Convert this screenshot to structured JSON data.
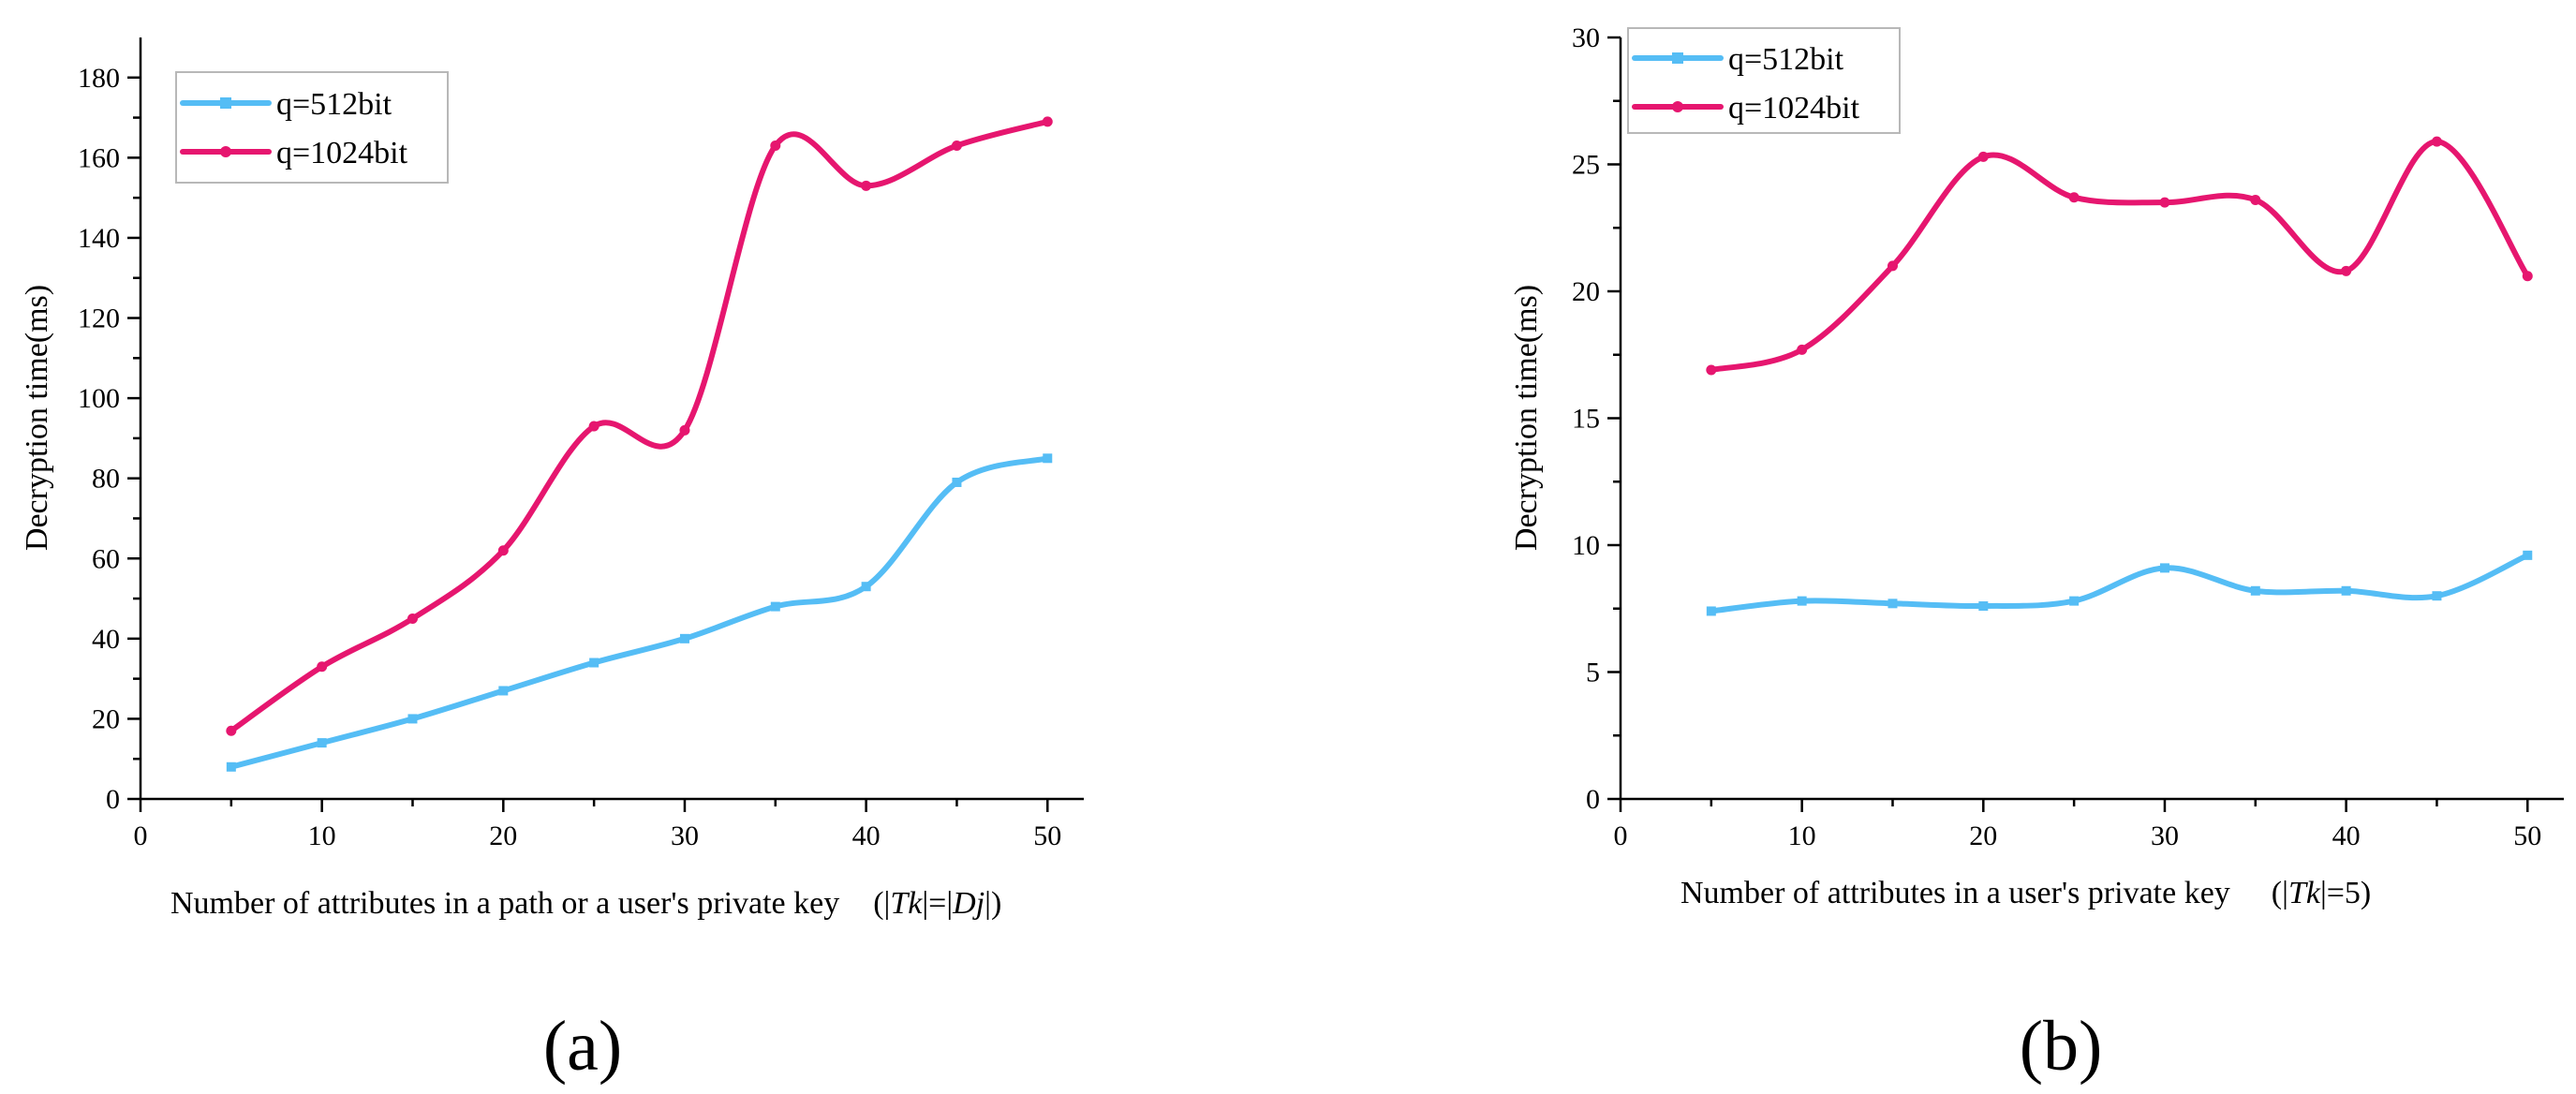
{
  "chart_data": [
    {
      "type": "line",
      "panel_label": "(a)",
      "x": [
        5,
        10,
        15,
        20,
        25,
        30,
        35,
        40,
        45,
        50
      ],
      "series": [
        {
          "name": "q=512bit",
          "color": "#55bdf5",
          "marker": "square",
          "values": [
            8,
            14,
            20,
            27,
            34,
            40,
            48,
            53,
            79,
            85
          ]
        },
        {
          "name": "q=1024bit",
          "color": "#e6166f",
          "marker": "circle",
          "values": [
            17,
            33,
            45,
            62,
            93,
            92,
            163,
            153,
            163,
            169
          ]
        }
      ],
      "xlabel": "Number of attributes in a path or a user's private key",
      "xlabel_suffix": {
        "open": "(|",
        "a": "Tk",
        "mid": "|=|",
        "b": "Dj",
        "close": "|)"
      },
      "ylabel": "Decryption time(ms)",
      "xlim": [
        0,
        52
      ],
      "ylim": [
        0,
        190
      ],
      "xticks": [
        0,
        10,
        20,
        30,
        40,
        50
      ],
      "yticks": [
        0,
        20,
        40,
        60,
        80,
        100,
        120,
        140,
        160,
        180
      ],
      "legend": "top-left",
      "grid": false
    },
    {
      "type": "line",
      "panel_label": "(b)",
      "x": [
        5,
        10,
        15,
        20,
        25,
        30,
        35,
        40,
        45,
        50
      ],
      "series": [
        {
          "name": "q=512bit",
          "color": "#55bdf5",
          "marker": "square",
          "values": [
            7.4,
            7.8,
            7.7,
            7.6,
            7.8,
            9.1,
            8.2,
            8.2,
            8.0,
            9.6
          ]
        },
        {
          "name": "q=1024bit",
          "color": "#e6166f",
          "marker": "circle",
          "values": [
            16.9,
            17.7,
            21.0,
            25.3,
            23.7,
            23.5,
            23.6,
            20.8,
            25.9,
            20.6
          ]
        }
      ],
      "xlabel": "Number of attributes in a user's private key",
      "xlabel_suffix": {
        "open": "(|",
        "a": "Tk",
        "mid": "|=5)",
        "b": "",
        "close": ""
      },
      "ylabel": "Decryption time(ms)",
      "xlim": [
        0,
        52
      ],
      "ylim": [
        0,
        30
      ],
      "xticks": [
        0,
        10,
        20,
        30,
        40,
        50
      ],
      "yticks": [
        0,
        5,
        10,
        15,
        20,
        25,
        30
      ],
      "legend": "top-left",
      "grid": false
    }
  ]
}
